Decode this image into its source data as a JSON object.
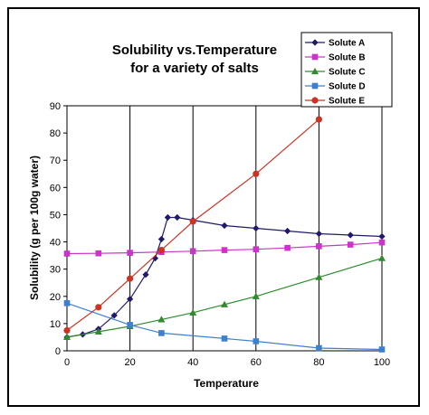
{
  "chart_data": {
    "type": "line",
    "title": "Solubility vs.Temperature",
    "subtitle": "for a variety of salts",
    "xlabel": "Temperature",
    "ylabel": "Solubility (g per 100g water)",
    "xlim": [
      0,
      100
    ],
    "ylim": [
      0,
      90
    ],
    "xticks": [
      "0",
      "20",
      "40",
      "60",
      "80",
      "100"
    ],
    "yticks": [
      "0",
      "10",
      "20",
      "30",
      "40",
      "50",
      "60",
      "70",
      "80",
      "90"
    ],
    "grid": "vertical",
    "legend_position": "top-right",
    "series": [
      {
        "name": "Solute A",
        "color": "#1f1a6b",
        "marker": "diamond",
        "points": [
          [
            0,
            5
          ],
          [
            5,
            6
          ],
          [
            10,
            8
          ],
          [
            15,
            13
          ],
          [
            20,
            19
          ],
          [
            25,
            28
          ],
          [
            28,
            34
          ],
          [
            30,
            41
          ],
          [
            32,
            49
          ],
          [
            35,
            49
          ],
          [
            40,
            48
          ],
          [
            50,
            46
          ],
          [
            60,
            45
          ],
          [
            70,
            44
          ],
          [
            80,
            43
          ],
          [
            90,
            42.5
          ],
          [
            100,
            42
          ]
        ]
      },
      {
        "name": "Solute B",
        "color": "#cc33cc",
        "marker": "square",
        "points": [
          [
            0,
            35.7
          ],
          [
            10,
            35.8
          ],
          [
            20,
            36
          ],
          [
            30,
            36.3
          ],
          [
            40,
            36.6
          ],
          [
            50,
            37
          ],
          [
            60,
            37.3
          ],
          [
            70,
            37.8
          ],
          [
            80,
            38.4
          ],
          [
            90,
            39
          ],
          [
            100,
            39.8
          ]
        ]
      },
      {
        "name": "Solute C",
        "color": "#2e8b2e",
        "marker": "triangle",
        "points": [
          [
            0,
            5
          ],
          [
            10,
            7
          ],
          [
            20,
            9
          ],
          [
            30,
            11.5
          ],
          [
            40,
            14
          ],
          [
            50,
            17
          ],
          [
            60,
            20
          ],
          [
            80,
            27
          ],
          [
            100,
            34
          ]
        ]
      },
      {
        "name": "Solute D",
        "color": "#3d7fd1",
        "marker": "square",
        "points": [
          [
            0,
            17.5
          ],
          [
            20,
            9.5
          ],
          [
            30,
            6.5
          ],
          [
            50,
            4.5
          ],
          [
            60,
            3.5
          ],
          [
            80,
            1
          ],
          [
            100,
            0.5
          ]
        ]
      },
      {
        "name": "Solute E",
        "color": "#cc3322",
        "marker": "circle",
        "points": [
          [
            0,
            7.5
          ],
          [
            10,
            16
          ],
          [
            20,
            26.5
          ],
          [
            30,
            37
          ],
          [
            40,
            47.5
          ],
          [
            60,
            65
          ],
          [
            80,
            85
          ]
        ]
      }
    ]
  }
}
